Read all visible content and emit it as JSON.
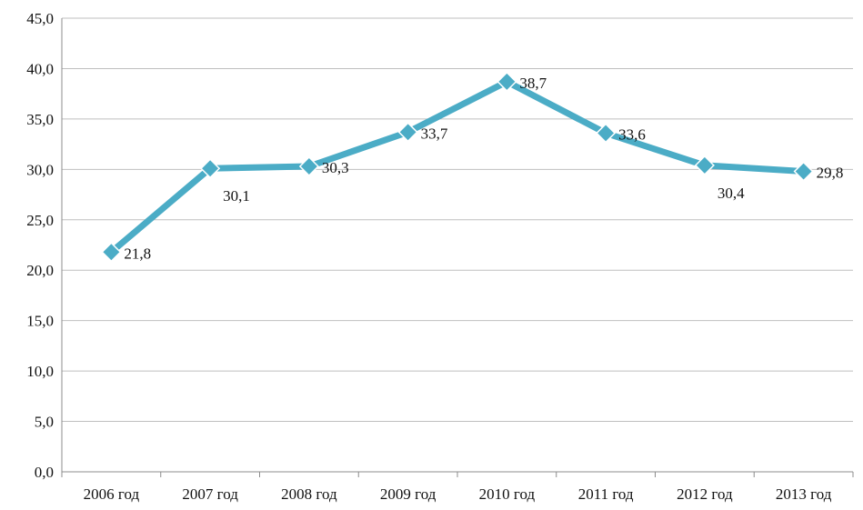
{
  "chart_data": {
    "type": "line",
    "title": "",
    "xlabel": "",
    "ylabel": "",
    "categories": [
      "2006 год",
      "2007 год",
      "2008 год",
      "2009 год",
      "2010 год",
      "2011 год",
      "2012 год",
      "2013 год"
    ],
    "series": [
      {
        "values": [
          21.8,
          30.1,
          30.3,
          33.7,
          38.7,
          33.6,
          30.4,
          29.8
        ],
        "value_labels": [
          "21,8",
          "30,1",
          "30,3",
          "33,7",
          "38,7",
          "33,6",
          "30,4",
          "29,8"
        ],
        "color": "#4bacc6",
        "marker": "diamond"
      }
    ],
    "ylim": [
      0,
      45
    ],
    "yticks": [
      0,
      5,
      10,
      15,
      20,
      25,
      30,
      35,
      40,
      45
    ],
    "ytick_labels": [
      "0,0",
      "5,0",
      "10,0",
      "15,0",
      "20,0",
      "25,0",
      "30,0",
      "35,0",
      "40,0",
      "45,0"
    ],
    "grid": true,
    "legend": false
  }
}
